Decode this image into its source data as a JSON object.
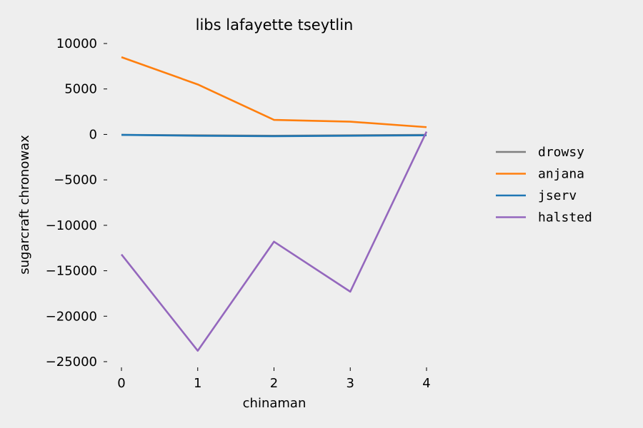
{
  "chart_data": {
    "type": "line",
    "title": "libs lafayette tseytlin",
    "xlabel": "chinaman",
    "ylabel": "sugarcraft chronowax",
    "x": [
      0,
      1,
      2,
      3,
      4
    ],
    "x_ticks": [
      "0",
      "1",
      "2",
      "3",
      "4"
    ],
    "ylim": [
      -25000,
      10000
    ],
    "y_ticks": [
      "−25000",
      "−20000",
      "−15000",
      "−10000",
      "−5000",
      "0",
      "5000",
      "10000"
    ],
    "y_tick_values": [
      -25000,
      -20000,
      -15000,
      -10000,
      -5000,
      0,
      5000,
      10000
    ],
    "grid": false,
    "legend_position": "right",
    "series": [
      {
        "name": "drowsy",
        "color": "#7f7f7f",
        "values": [
          -50,
          -100,
          -150,
          -100,
          -50
        ]
      },
      {
        "name": "anjana",
        "color": "#ff7f0e",
        "values": [
          8500,
          5500,
          1600,
          1400,
          800
        ]
      },
      {
        "name": "jserv",
        "color": "#1f77b4",
        "values": [
          -50,
          -150,
          -200,
          -150,
          -100
        ]
      },
      {
        "name": "halsted",
        "color": "#9467bd",
        "values": [
          -13200,
          -23800,
          -11800,
          -17300,
          300
        ]
      }
    ]
  }
}
